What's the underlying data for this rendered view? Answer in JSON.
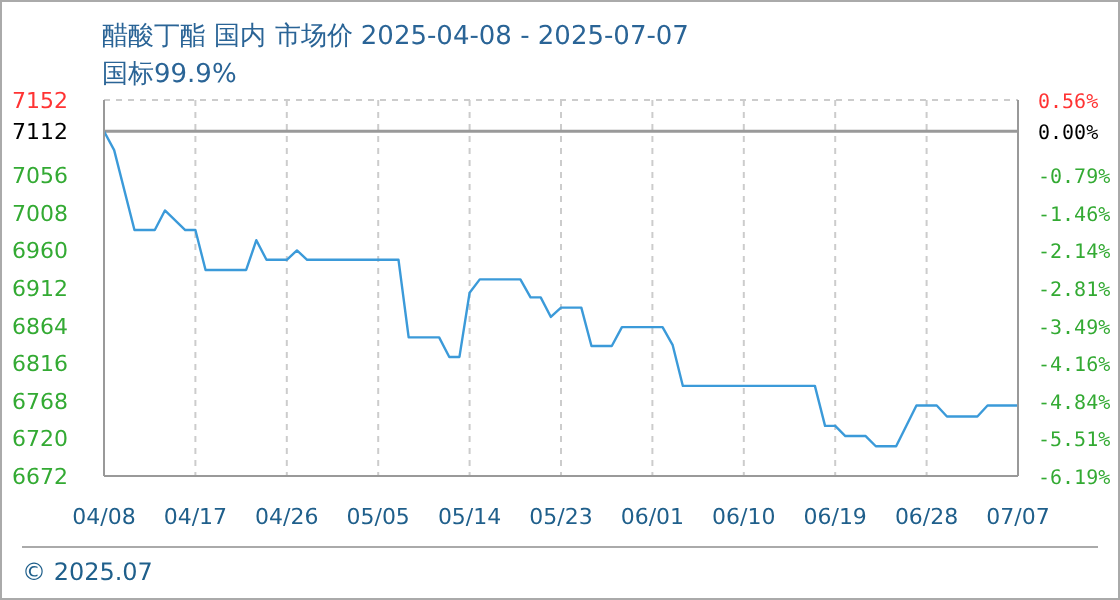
{
  "chart_data": {
    "type": "line",
    "title": "醋酸丁酯 国内 市场价 2025-04-08 - 2025-07-07",
    "subtitle": "国标99.9%",
    "annotations": [
      "© 2025.07"
    ],
    "x": [
      "2025-04-08",
      "2025-04-09",
      "2025-04-11",
      "2025-04-13",
      "2025-04-14",
      "2025-04-16",
      "2025-04-17",
      "2025-04-18",
      "2025-04-22",
      "2025-04-23",
      "2025-04-24",
      "2025-04-26",
      "2025-04-27",
      "2025-04-28",
      "2025-05-07",
      "2025-05-08",
      "2025-05-11",
      "2025-05-12",
      "2025-05-13",
      "2025-05-14",
      "2025-05-15",
      "2025-05-19",
      "2025-05-20",
      "2025-05-21",
      "2025-05-22",
      "2025-05-23",
      "2025-05-25",
      "2025-05-26",
      "2025-05-28",
      "2025-05-29",
      "2025-06-02",
      "2025-06-03",
      "2025-06-04",
      "2025-06-17",
      "2025-06-18",
      "2025-06-19",
      "2025-06-20",
      "2025-06-22",
      "2025-06-23",
      "2025-06-25",
      "2025-06-27",
      "2025-06-29",
      "2025-06-30",
      "2025-07-03",
      "2025-07-04",
      "2025-07-07"
    ],
    "series": [
      {
        "color": "#3b9ad9",
        "values": [
          7112,
          7088,
          6986,
          6986,
          7011,
          6986,
          6986,
          6935,
          6935,
          6973,
          6948,
          6948,
          6960,
          6948,
          6948,
          6849,
          6849,
          6824,
          6824,
          6906,
          6923,
          6923,
          6900,
          6900,
          6875,
          6887,
          6887,
          6838,
          6838,
          6862,
          6862,
          6839,
          6787,
          6787,
          6736,
          6736,
          6723,
          6723,
          6710,
          6710,
          6762,
          6762,
          6748,
          6748,
          6762,
          6762
        ]
      }
    ],
    "xlim": [
      "2025-04-08",
      "2025-07-07"
    ],
    "xticks": [
      {
        "value": "2025-04-08",
        "label": "04/08"
      },
      {
        "value": "2025-04-17",
        "label": "04/17"
      },
      {
        "value": "2025-04-26",
        "label": "04/26"
      },
      {
        "value": "2025-05-05",
        "label": "05/05"
      },
      {
        "value": "2025-05-14",
        "label": "05/14"
      },
      {
        "value": "2025-05-23",
        "label": "05/23"
      },
      {
        "value": "2025-06-01",
        "label": "06/01"
      },
      {
        "value": "2025-06-10",
        "label": "06/10"
      },
      {
        "value": "2025-06-19",
        "label": "06/19"
      },
      {
        "value": "2025-06-28",
        "label": "06/28"
      },
      {
        "value": "2025-07-07",
        "label": "07/07"
      }
    ],
    "ylim": [
      6672,
      7152
    ],
    "yticks": [
      6672,
      6720,
      6768,
      6816,
      6864,
      6912,
      6960,
      7008,
      7056,
      7112,
      7152
    ],
    "y2lim": [
      -6.19,
      0.56
    ],
    "y2ticks": [
      {
        "value": -6.19,
        "label": "-6.19%"
      },
      {
        "value": -5.51,
        "label": "-5.51%"
      },
      {
        "value": -4.84,
        "label": "-4.84%"
      },
      {
        "value": -4.16,
        "label": "-4.16%"
      },
      {
        "value": -3.49,
        "label": "-3.49%"
      },
      {
        "value": -2.81,
        "label": "-2.81%"
      },
      {
        "value": -2.14,
        "label": "-2.14%"
      },
      {
        "value": -1.46,
        "label": "-1.46%"
      },
      {
        "value": -0.79,
        "label": "-0.79%"
      },
      {
        "value": 0,
        "label": "0.00%"
      },
      {
        "value": 0.56,
        "label": "0.56%"
      }
    ],
    "ref_lines": [
      {
        "axis": "y",
        "value": 7112,
        "color": "#999999"
      }
    ],
    "grid": true,
    "marker": "none",
    "line_style": "solid"
  }
}
